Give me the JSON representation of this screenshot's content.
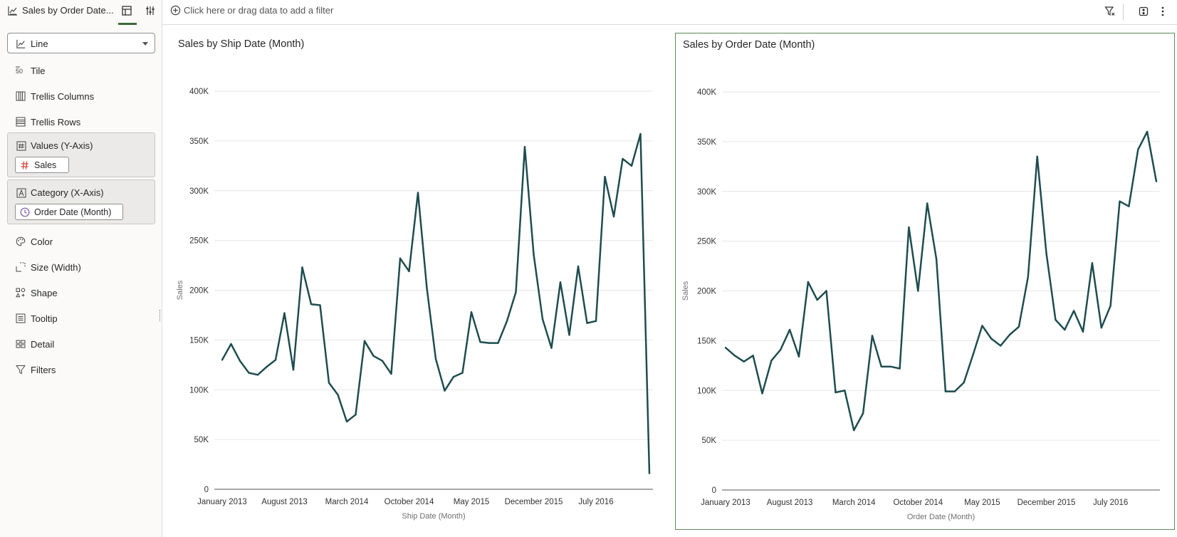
{
  "header": {
    "title": "Sales by Order Date...",
    "filter_prompt": "Click here or drag data to add a filter"
  },
  "panel": {
    "chart_type": "Line",
    "rows_top": [
      {
        "label": "Tile",
        "icon": "tile-icon"
      },
      {
        "label": "Trellis Columns",
        "icon": "trellis-columns-icon"
      },
      {
        "label": "Trellis Rows",
        "icon": "trellis-rows-icon"
      }
    ],
    "values_well": {
      "label": "Values (Y-Axis)",
      "pill": "Sales"
    },
    "category_well": {
      "label": "Category (X-Axis)",
      "pill": "Order Date (Month)"
    },
    "rows_bottom": [
      {
        "label": "Color",
        "icon": "palette-icon"
      },
      {
        "label": "Size (Width)",
        "icon": "size-icon"
      },
      {
        "label": "Shape",
        "icon": "shape-icon"
      },
      {
        "label": "Tooltip",
        "icon": "tooltip-icon"
      },
      {
        "label": "Detail",
        "icon": "detail-icon"
      },
      {
        "label": "Filters",
        "icon": "filter-icon"
      }
    ]
  },
  "colors": {
    "series": "#1f4d4f",
    "accent": "#3d6b3a",
    "selected_border": "#5b8a56"
  },
  "chart_data": [
    {
      "type": "line",
      "title": "Sales by Ship Date (Month)",
      "xlabel": "Ship Date (Month)",
      "ylabel": "Sales",
      "ylim": [
        0,
        400000
      ],
      "yticks": [
        "0",
        "50K",
        "100K",
        "150K",
        "200K",
        "250K",
        "300K",
        "350K",
        "400K"
      ],
      "xticks": [
        "January 2013",
        "August 2013",
        "March 2014",
        "October 2014",
        "May 2015",
        "December 2015",
        "July 2016"
      ],
      "grid": true,
      "series": [
        {
          "values": [
            130000,
            146000,
            129000,
            117000,
            115000,
            123000,
            130000,
            177000,
            120000,
            223000,
            186000,
            185000,
            107000,
            95000,
            68000,
            75000,
            149000,
            134000,
            129000,
            116000,
            232000,
            219000,
            298000,
            202000,
            131000,
            99000,
            113000,
            117000,
            178000,
            148000,
            147000,
            147000,
            169000,
            198000,
            344000,
            236000,
            171000,
            142000,
            208000,
            155000,
            224000,
            167000,
            169000,
            314000,
            274000,
            332000,
            325000,
            357000,
            16000
          ]
        }
      ]
    },
    {
      "type": "line",
      "title": "Sales by Order Date (Month)",
      "xlabel": "Order Date (Month)",
      "ylabel": "Sales",
      "ylim": [
        0,
        400000
      ],
      "yticks": [
        "0",
        "50K",
        "100K",
        "150K",
        "200K",
        "250K",
        "300K",
        "350K",
        "400K"
      ],
      "xticks": [
        "January 2013",
        "August 2013",
        "March 2014",
        "October 2014",
        "May 2015",
        "December 2015",
        "July 2016"
      ],
      "grid": true,
      "series": [
        {
          "values": [
            143000,
            135000,
            129000,
            135000,
            97000,
            130000,
            141000,
            161000,
            134000,
            209000,
            191000,
            200000,
            98000,
            100000,
            60000,
            77000,
            155000,
            124000,
            124000,
            122000,
            264000,
            200000,
            288000,
            232000,
            99000,
            99000,
            108000,
            136000,
            165000,
            152000,
            145000,
            156000,
            164000,
            214000,
            335000,
            238000,
            171000,
            161000,
            180000,
            159000,
            228000,
            163000,
            185000,
            290000,
            285000,
            342000,
            360000,
            310000
          ]
        }
      ]
    }
  ]
}
